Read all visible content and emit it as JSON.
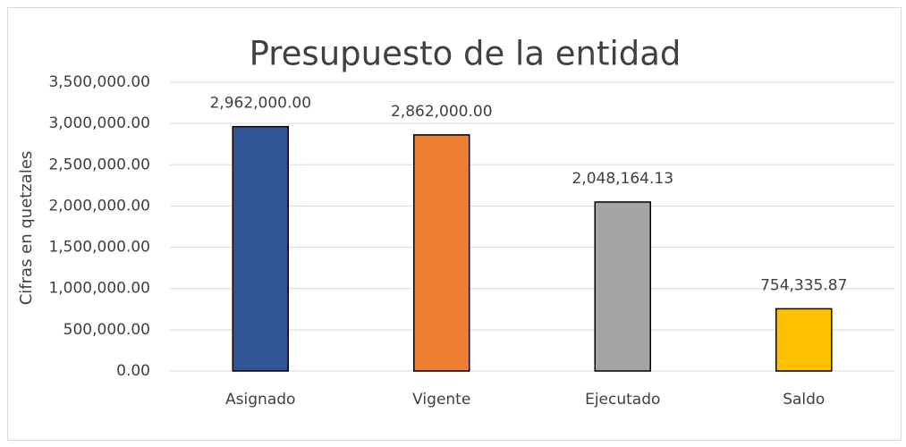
{
  "chart_data": {
    "type": "bar",
    "title": "Presupuesto de la entidad",
    "y_label": "Cifras en quetzales",
    "categories": [
      "Asignado",
      "Vigente",
      "Ejecutado",
      "Saldo"
    ],
    "values": [
      2962000,
      2862000,
      2048164.13,
      754335.87
    ],
    "value_labels": [
      "2,962,000.00",
      "2,862,000.00",
      "2,048,164.13",
      "754,335.87"
    ],
    "colors": [
      "#2f5597",
      "#ed7d31",
      "#a5a5a5",
      "#ffc000"
    ],
    "ylim": [
      0,
      3500000
    ],
    "yticks": [
      {
        "value": 0,
        "label": "0.00"
      },
      {
        "value": 500000,
        "label": "500,000.00"
      },
      {
        "value": 1000000,
        "label": "1,000,000.00"
      },
      {
        "value": 1500000,
        "label": "1,500,000.00"
      },
      {
        "value": 2000000,
        "label": "2,000,000.00"
      },
      {
        "value": 2500000,
        "label": "2,500,000.00"
      },
      {
        "value": 3000000,
        "label": "3,000,000.00"
      },
      {
        "value": 3500000,
        "label": "3,500,000.00"
      }
    ],
    "grid": true
  }
}
